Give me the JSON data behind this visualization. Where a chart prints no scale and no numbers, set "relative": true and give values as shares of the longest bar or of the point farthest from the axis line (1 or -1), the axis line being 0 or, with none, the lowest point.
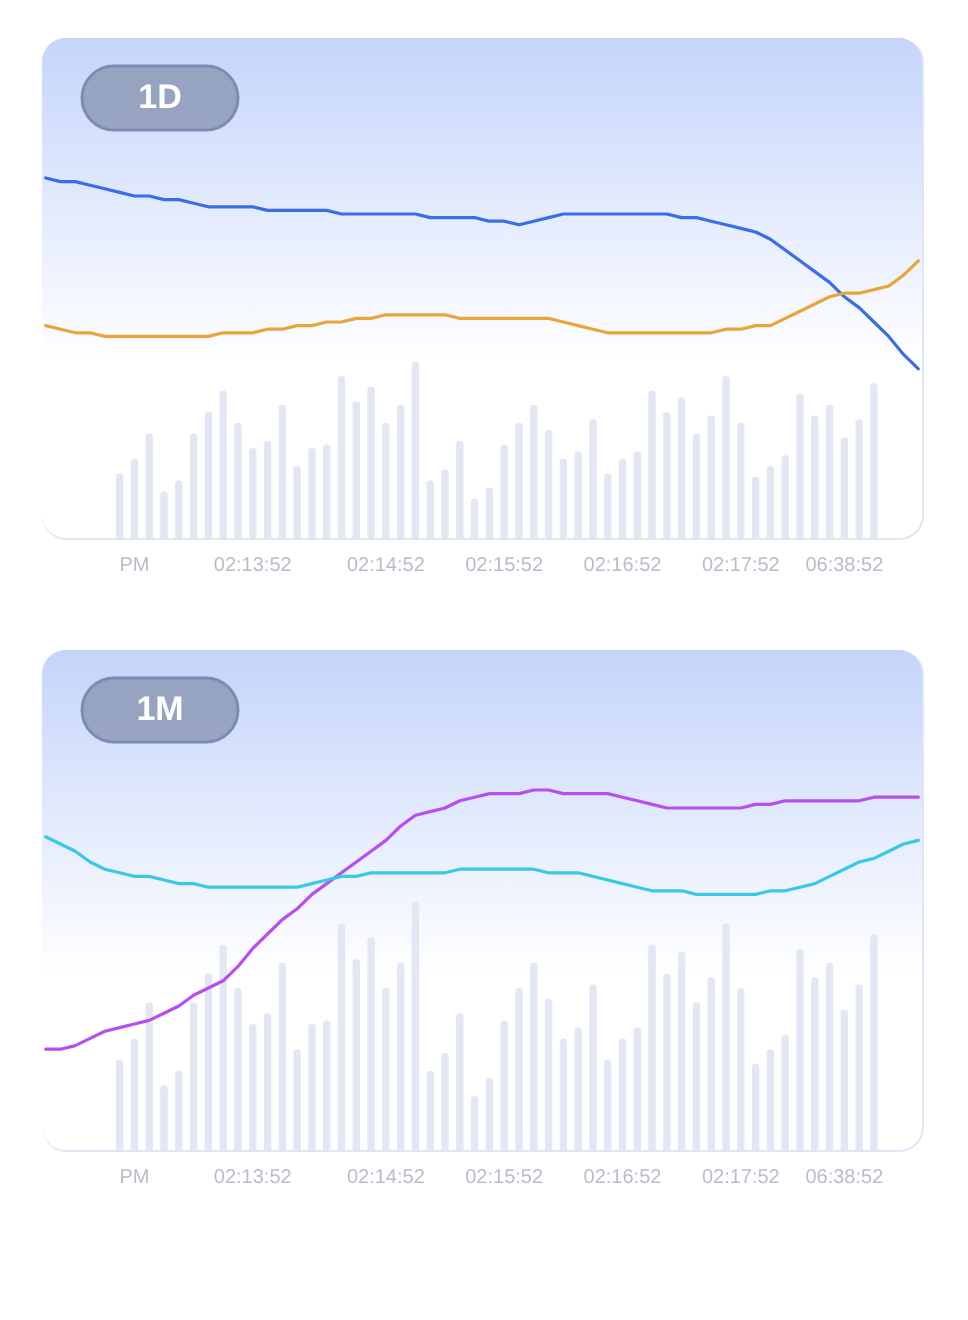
{
  "chart_data": [
    {
      "type": "line",
      "title": "1D",
      "relative": true,
      "categories": [
        null,
        null,
        null,
        null,
        null,
        null,
        "PM",
        null,
        null,
        null,
        null,
        null,
        null,
        null,
        "02:13:52",
        null,
        null,
        null,
        null,
        null,
        null,
        null,
        null,
        "02:14:52",
        null,
        null,
        null,
        null,
        null,
        null,
        null,
        "02:15:52",
        null,
        null,
        null,
        null,
        null,
        null,
        null,
        "02:16:52",
        null,
        null,
        null,
        null,
        null,
        null,
        null,
        "02:17:52",
        null,
        null,
        null,
        null,
        null,
        null,
        "06:38:52",
        null,
        null,
        null,
        null,
        null
      ],
      "series": [
        {
          "type": "bar",
          "color": "#e3e7f3",
          "values": [
            null,
            null,
            null,
            null,
            null,
            0.18,
            0.22,
            0.29,
            0.13,
            0.16,
            0.29,
            0.35,
            0.41,
            0.32,
            0.25,
            0.27,
            0.37,
            0.2,
            0.25,
            0.26,
            0.45,
            0.38,
            0.42,
            0.32,
            0.37,
            0.49,
            0.16,
            0.19,
            0.27,
            0.11,
            0.14,
            0.26,
            0.32,
            0.37,
            0.3,
            0.22,
            0.24,
            0.33,
            0.18,
            0.22,
            0.24,
            0.41,
            0.35,
            0.39,
            0.29,
            0.34,
            0.45,
            0.32,
            0.17,
            0.2,
            0.23,
            0.4,
            0.34,
            0.37,
            0.28,
            0.33,
            0.43,
            null,
            null,
            null
          ]
        },
        {
          "color": "#3a6ee8",
          "values": [
            1.0,
            0.99,
            0.99,
            0.98,
            0.97,
            0.96,
            0.95,
            0.95,
            0.94,
            0.94,
            0.93,
            0.92,
            0.92,
            0.92,
            0.92,
            0.91,
            0.91,
            0.91,
            0.91,
            0.91,
            0.9,
            0.9,
            0.9,
            0.9,
            0.9,
            0.9,
            0.89,
            0.89,
            0.89,
            0.89,
            0.88,
            0.88,
            0.87,
            0.88,
            0.89,
            0.9,
            0.9,
            0.9,
            0.9,
            0.9,
            0.9,
            0.9,
            0.9,
            0.89,
            0.89,
            0.88,
            0.87,
            0.86,
            0.85,
            0.83,
            0.8,
            0.77,
            0.74,
            0.71,
            0.67,
            0.64,
            0.6,
            0.56,
            0.51,
            0.47
          ]
        },
        {
          "color": "#e8a53a",
          "values": [
            0.59,
            0.58,
            0.57,
            0.57,
            0.56,
            0.56,
            0.56,
            0.56,
            0.56,
            0.56,
            0.56,
            0.56,
            0.57,
            0.57,
            0.57,
            0.58,
            0.58,
            0.59,
            0.59,
            0.6,
            0.6,
            0.61,
            0.61,
            0.62,
            0.62,
            0.62,
            0.62,
            0.62,
            0.61,
            0.61,
            0.61,
            0.61,
            0.61,
            0.61,
            0.61,
            0.6,
            0.59,
            0.58,
            0.57,
            0.57,
            0.57,
            0.57,
            0.57,
            0.57,
            0.57,
            0.57,
            0.58,
            0.58,
            0.59,
            0.59,
            0.61,
            0.63,
            0.65,
            0.67,
            0.68,
            0.68,
            0.69,
            0.7,
            0.73,
            0.77
          ]
        }
      ]
    },
    {
      "type": "line",
      "title": "1M",
      "relative": true,
      "categories": [
        null,
        null,
        null,
        null,
        null,
        null,
        "PM",
        null,
        null,
        null,
        null,
        null,
        null,
        null,
        "02:13:52",
        null,
        null,
        null,
        null,
        null,
        null,
        null,
        null,
        "02:14:52",
        null,
        null,
        null,
        null,
        null,
        null,
        null,
        "02:15:52",
        null,
        null,
        null,
        null,
        null,
        null,
        null,
        "02:16:52",
        null,
        null,
        null,
        null,
        null,
        null,
        null,
        "02:17:52",
        null,
        null,
        null,
        null,
        null,
        null,
        "06:38:52",
        null,
        null,
        null,
        null,
        null
      ],
      "series": [
        {
          "type": "bar",
          "color": "#e3e7f3",
          "values": [
            null,
            null,
            null,
            null,
            null,
            0.25,
            0.31,
            0.41,
            0.18,
            0.22,
            0.41,
            0.49,
            0.57,
            0.45,
            0.35,
            0.38,
            0.52,
            0.28,
            0.35,
            0.36,
            0.63,
            0.53,
            0.59,
            0.45,
            0.52,
            0.69,
            0.22,
            0.27,
            0.38,
            0.15,
            0.2,
            0.36,
            0.45,
            0.52,
            0.42,
            0.31,
            0.34,
            0.46,
            0.25,
            0.31,
            0.34,
            0.57,
            0.49,
            0.55,
            0.41,
            0.48,
            0.63,
            0.45,
            0.24,
            0.28,
            0.32,
            0.56,
            0.48,
            0.52,
            0.39,
            0.46,
            0.6,
            null,
            null,
            null
          ]
        },
        {
          "color": "#b84ef0",
          "values": [
            0.28,
            0.28,
            0.29,
            0.31,
            0.33,
            0.34,
            0.35,
            0.36,
            0.38,
            0.4,
            0.43,
            0.45,
            0.47,
            0.51,
            0.56,
            0.6,
            0.64,
            0.67,
            0.71,
            0.74,
            0.77,
            0.8,
            0.83,
            0.86,
            0.9,
            0.93,
            0.94,
            0.95,
            0.97,
            0.98,
            0.99,
            0.99,
            0.99,
            1.0,
            1.0,
            0.99,
            0.99,
            0.99,
            0.99,
            0.98,
            0.97,
            0.96,
            0.95,
            0.95,
            0.95,
            0.95,
            0.95,
            0.95,
            0.96,
            0.96,
            0.97,
            0.97,
            0.97,
            0.97,
            0.97,
            0.97,
            0.98,
            0.98,
            0.98,
            0.98
          ]
        },
        {
          "color": "#38c8e8",
          "values": [
            0.87,
            0.85,
            0.83,
            0.8,
            0.78,
            0.77,
            0.76,
            0.76,
            0.75,
            0.74,
            0.74,
            0.73,
            0.73,
            0.73,
            0.73,
            0.73,
            0.73,
            0.73,
            0.74,
            0.75,
            0.76,
            0.76,
            0.77,
            0.77,
            0.77,
            0.77,
            0.77,
            0.77,
            0.78,
            0.78,
            0.78,
            0.78,
            0.78,
            0.78,
            0.77,
            0.77,
            0.77,
            0.76,
            0.75,
            0.74,
            0.73,
            0.72,
            0.72,
            0.72,
            0.71,
            0.71,
            0.71,
            0.71,
            0.71,
            0.72,
            0.72,
            0.73,
            0.74,
            0.76,
            0.78,
            0.8,
            0.81,
            0.83,
            0.85,
            0.86
          ]
        }
      ]
    }
  ]
}
